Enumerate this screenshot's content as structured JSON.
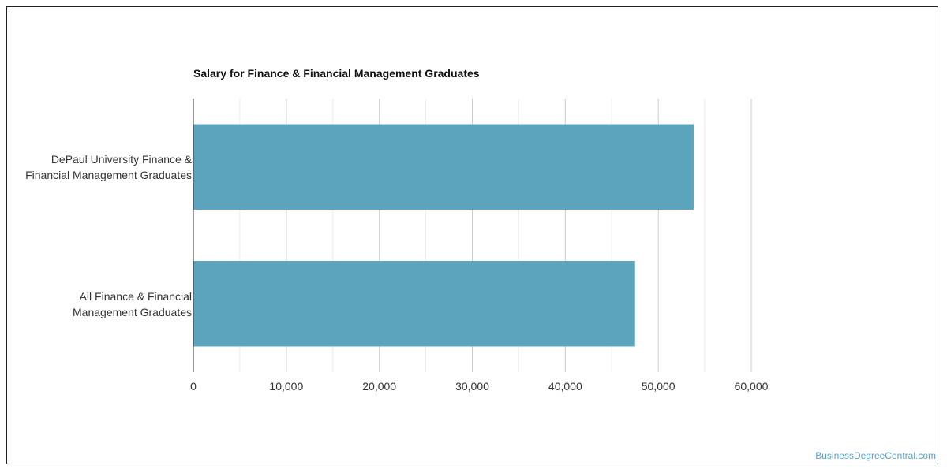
{
  "chart_data": {
    "type": "bar",
    "orientation": "horizontal",
    "title": "Salary for Finance & Financial Management Graduates",
    "categories": [
      [
        "DePaul University Finance &",
        "Financial Management Graduates"
      ],
      [
        "All Finance & Financial",
        "Management Graduates"
      ]
    ],
    "values": [
      53800,
      47500
    ],
    "xlim": [
      0,
      60000
    ],
    "xticks": [
      0,
      10000,
      20000,
      30000,
      40000,
      50000,
      60000
    ],
    "xtick_labels": [
      "0",
      "10,000",
      "20,000",
      "30,000",
      "40,000",
      "50,000",
      "60,000"
    ],
    "bar_color": "#5ca3be",
    "grid": true
  },
  "watermark": "BusinessDegreeCentral.com"
}
